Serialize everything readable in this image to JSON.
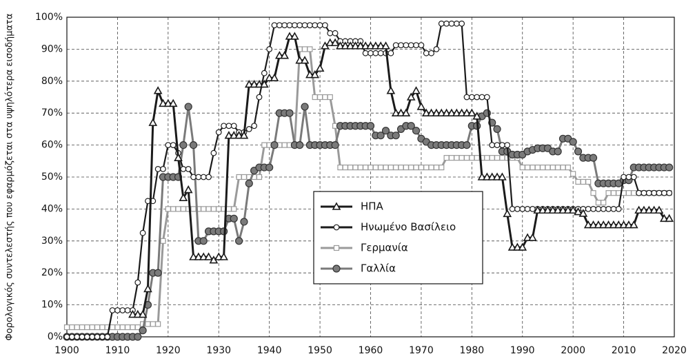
{
  "chart_data": {
    "type": "line",
    "y_label": "Φορολογικός συντελεστής που εφαρμόζεται στα υψηλότερα εισοδήματα",
    "x": [
      1900,
      1901,
      1902,
      1903,
      1904,
      1905,
      1906,
      1907,
      1908,
      1909,
      1910,
      1911,
      1912,
      1913,
      1914,
      1915,
      1916,
      1917,
      1918,
      1919,
      1920,
      1921,
      1922,
      1923,
      1924,
      1925,
      1926,
      1927,
      1928,
      1929,
      1930,
      1931,
      1932,
      1933,
      1934,
      1935,
      1936,
      1937,
      1938,
      1939,
      1940,
      1941,
      1942,
      1943,
      1944,
      1945,
      1946,
      1947,
      1948,
      1949,
      1950,
      1951,
      1952,
      1953,
      1954,
      1955,
      1956,
      1957,
      1958,
      1959,
      1960,
      1961,
      1962,
      1963,
      1964,
      1965,
      1966,
      1967,
      1968,
      1969,
      1970,
      1971,
      1972,
      1973,
      1974,
      1975,
      1976,
      1977,
      1978,
      1979,
      1980,
      1981,
      1982,
      1983,
      1984,
      1985,
      1986,
      1987,
      1988,
      1989,
      1990,
      1991,
      1992,
      1993,
      1994,
      1995,
      1996,
      1997,
      1998,
      1999,
      2000,
      2001,
      2002,
      2003,
      2004,
      2005,
      2006,
      2007,
      2008,
      2009,
      2010,
      2011,
      2012,
      2013,
      2014,
      2015,
      2016,
      2017,
      2018,
      2019
    ],
    "series": [
      {
        "name": "ΗΠΑ",
        "color": "#1a1a1a",
        "marker": "triangle",
        "values": [
          null,
          null,
          null,
          null,
          null,
          null,
          null,
          null,
          null,
          null,
          null,
          null,
          null,
          7,
          7,
          7,
          15,
          67,
          77,
          73,
          73,
          73,
          56,
          43.5,
          46,
          25,
          25,
          25,
          25,
          24,
          25,
          25,
          63,
          63,
          63,
          63,
          79,
          79,
          79,
          79,
          81,
          81,
          88,
          88,
          94,
          94,
          86.5,
          86.5,
          82,
          82,
          84,
          91,
          92,
          92,
          91,
          91,
          91,
          91,
          91,
          91,
          91,
          91,
          91,
          91,
          77,
          70,
          70,
          70,
          75,
          77,
          72,
          70,
          70,
          70,
          70,
          70,
          70,
          70,
          70,
          70,
          70,
          69,
          50,
          50,
          50,
          50,
          50,
          38.5,
          28,
          28,
          28,
          31,
          31,
          39.6,
          39.6,
          39.6,
          39.6,
          39.6,
          39.6,
          39.6,
          39.6,
          39.1,
          38.6,
          35,
          35,
          35,
          35,
          35,
          35,
          35,
          35,
          35,
          35,
          39.6,
          39.6,
          39.6,
          39.6,
          39.6,
          37,
          37
        ]
      },
      {
        "name": "Ηνωμένο Βασίλειο",
        "color": "#1a1a1a",
        "marker": "circle",
        "values": [
          0,
          0,
          0,
          0,
          0,
          0,
          0,
          0,
          0,
          8.3,
          8.3,
          8.3,
          8.3,
          8.3,
          17,
          32.5,
          42.5,
          42.5,
          52.5,
          52.5,
          60,
          60,
          57.5,
          52.5,
          52.5,
          50,
          50,
          50,
          50,
          57.5,
          64,
          66,
          66,
          66,
          64,
          64,
          65,
          66,
          75,
          82.5,
          90,
          97.5,
          97.5,
          97.5,
          97.5,
          97.5,
          97.5,
          97.5,
          97.5,
          97.5,
          97.5,
          97.5,
          95,
          95,
          92.5,
          92.5,
          92.5,
          92.5,
          92.5,
          88.75,
          88.75,
          88.75,
          88.75,
          88.75,
          88.75,
          91.25,
          91.25,
          91.25,
          91.25,
          91.25,
          91.25,
          88.75,
          88.75,
          90,
          98,
          98,
          98,
          98,
          98,
          75,
          75,
          75,
          75,
          75,
          60,
          60,
          60,
          60,
          40,
          40,
          40,
          40,
          40,
          40,
          40,
          40,
          40,
          40,
          40,
          40,
          40,
          40,
          40,
          40,
          40,
          40,
          40,
          40,
          40,
          40,
          50,
          50,
          50,
          45,
          45,
          45,
          45,
          45,
          45,
          45
        ]
      },
      {
        "name": "Γερμανία",
        "color": "#9a9a9a",
        "marker": "square",
        "values": [
          3,
          3,
          3,
          3,
          3,
          3,
          3,
          3,
          3,
          3,
          3,
          3,
          3,
          3,
          3,
          4,
          4,
          4,
          4,
          30,
          40,
          40,
          40,
          40,
          40,
          40,
          40,
          40,
          40,
          40,
          40,
          40,
          40,
          40,
          50,
          50,
          50,
          50,
          50,
          60,
          60,
          60,
          60,
          60,
          60,
          60,
          90,
          90,
          90,
          75,
          75,
          75,
          75,
          66,
          53,
          53,
          53,
          53,
          53,
          53,
          53,
          53,
          53,
          53,
          53,
          53,
          53,
          53,
          53,
          53,
          53,
          53,
          53,
          53,
          53,
          56,
          56,
          56,
          56,
          56,
          56,
          56,
          56,
          56,
          56,
          56,
          56,
          56,
          56,
          56,
          53,
          53,
          53,
          53,
          53,
          53,
          53,
          53,
          53,
          53,
          51,
          48.5,
          48.5,
          48.5,
          45,
          42,
          42,
          45,
          45,
          45,
          45,
          45,
          45,
          45,
          45,
          45,
          45,
          45,
          45,
          45
        ]
      },
      {
        "name": "Γαλλία",
        "color": "#7a7a7a",
        "marker": "dot",
        "values": [
          0,
          0,
          0,
          0,
          0,
          0,
          0,
          0,
          0,
          0,
          0,
          0,
          0,
          0,
          0,
          2,
          10,
          20,
          20,
          50,
          50,
          50,
          50,
          60,
          72,
          60,
          30,
          30,
          33,
          33,
          33,
          33,
          37,
          37,
          30,
          36,
          48,
          52,
          53,
          53,
          53,
          60,
          70,
          70,
          70,
          60,
          60,
          72,
          60,
          60,
          60,
          60,
          60,
          60,
          66,
          66,
          66,
          66,
          66,
          66,
          66,
          63,
          63,
          64.5,
          63,
          63,
          65,
          66,
          66,
          64.5,
          62,
          61,
          60,
          60,
          60,
          60,
          60,
          60,
          60,
          60,
          66,
          66,
          69,
          70,
          67,
          65,
          58,
          58,
          57,
          57,
          57,
          58,
          58.5,
          59,
          59,
          59,
          58,
          58,
          62,
          62,
          61,
          58,
          56,
          56,
          56,
          48,
          48,
          48,
          48,
          48,
          49,
          49,
          53,
          53,
          53,
          53,
          53,
          53,
          53,
          53
        ]
      }
    ],
    "xlim": [
      1900,
      2020
    ],
    "xticks": [
      1900,
      1910,
      1920,
      1930,
      1940,
      1950,
      1960,
      1970,
      1980,
      1990,
      2000,
      2010,
      2020
    ],
    "ylim": [
      0,
      100
    ],
    "yticks": [
      {
        "value": 0,
        "label": "0%"
      },
      {
        "value": 10,
        "label": "10%"
      },
      {
        "value": 20,
        "label": "20%"
      },
      {
        "value": 30,
        "label": "30%"
      },
      {
        "value": 40,
        "label": "40%"
      },
      {
        "value": 50,
        "label": "50%"
      },
      {
        "value": 60,
        "label": "60%"
      },
      {
        "value": 70,
        "label": "70%"
      },
      {
        "value": 80,
        "label": "80%"
      },
      {
        "value": 90,
        "label": "90%"
      },
      {
        "value": 100,
        "label": "100%"
      }
    ],
    "grid": true
  }
}
